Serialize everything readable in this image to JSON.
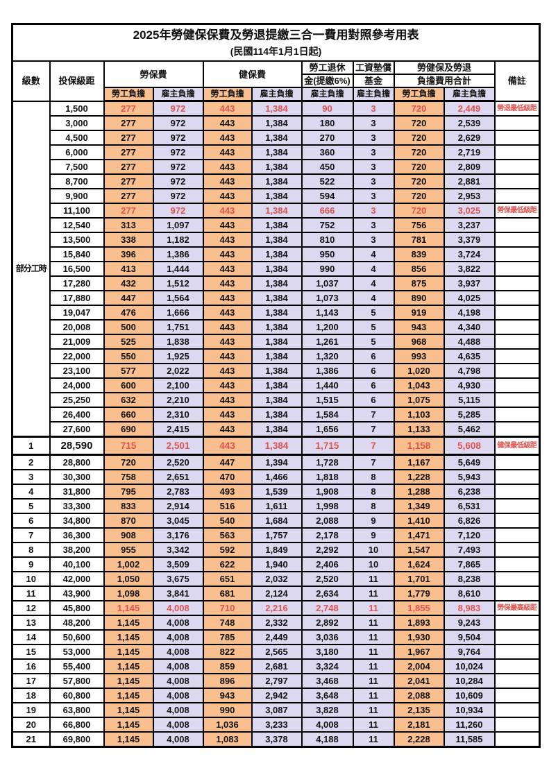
{
  "title": "2025年勞健保保費及勞退提繳三合一費用對照參考用表",
  "subtitle": "(民國114年1月1日起)",
  "colors": {
    "employee_column_bg": "#FABF8F",
    "employer_column_bg": "#DBD8EF",
    "highlight_red_text": "#E0524E",
    "grid_border": "#000000"
  },
  "header": {
    "level": "級數",
    "bracket": "投保級距",
    "labor": "勞保費",
    "health": "健保費",
    "pension_1": "勞工退休",
    "pension_2": "金(提繳6%)",
    "fund_1": "工資墊償",
    "fund_2": "基金",
    "total_1": "勞健保及勞退",
    "total_2": "負擔費用合計",
    "remark": "備註",
    "employee_label": "勞工負擔",
    "employer_label": "雇主負擔"
  },
  "table": {
    "level_group_label": "部分工時",
    "level_group_span": 23,
    "rows": [
      {
        "level": "",
        "bracket": "1,500",
        "labor_emp": "277",
        "labor_er": "972",
        "health_emp": "443",
        "health_er": "1,384",
        "pension": "90",
        "wage_fund": "3",
        "total_emp": "720",
        "total_er": "2,449",
        "remark": "勞退最低級距",
        "red": true
      },
      {
        "level": "",
        "bracket": "3,000",
        "labor_emp": "277",
        "labor_er": "972",
        "health_emp": "443",
        "health_er": "1,384",
        "pension": "180",
        "wage_fund": "3",
        "total_emp": "720",
        "total_er": "2,539",
        "remark": ""
      },
      {
        "level": "",
        "bracket": "4,500",
        "labor_emp": "277",
        "labor_er": "972",
        "health_emp": "443",
        "health_er": "1,384",
        "pension": "270",
        "wage_fund": "3",
        "total_emp": "720",
        "total_er": "2,629",
        "remark": ""
      },
      {
        "level": "",
        "bracket": "6,000",
        "labor_emp": "277",
        "labor_er": "972",
        "health_emp": "443",
        "health_er": "1,384",
        "pension": "360",
        "wage_fund": "3",
        "total_emp": "720",
        "total_er": "2,719",
        "remark": ""
      },
      {
        "level": "",
        "bracket": "7,500",
        "labor_emp": "277",
        "labor_er": "972",
        "health_emp": "443",
        "health_er": "1,384",
        "pension": "450",
        "wage_fund": "3",
        "total_emp": "720",
        "total_er": "2,809",
        "remark": ""
      },
      {
        "level": "",
        "bracket": "8,700",
        "labor_emp": "277",
        "labor_er": "972",
        "health_emp": "443",
        "health_er": "1,384",
        "pension": "522",
        "wage_fund": "3",
        "total_emp": "720",
        "total_er": "2,881",
        "remark": ""
      },
      {
        "level": "",
        "bracket": "9,900",
        "labor_emp": "277",
        "labor_er": "972",
        "health_emp": "443",
        "health_er": "1,384",
        "pension": "594",
        "wage_fund": "3",
        "total_emp": "720",
        "total_er": "2,953",
        "remark": ""
      },
      {
        "level": "",
        "bracket": "11,100",
        "labor_emp": "277",
        "labor_er": "972",
        "health_emp": "443",
        "health_er": "1,384",
        "pension": "666",
        "wage_fund": "3",
        "total_emp": "720",
        "total_er": "3,025",
        "remark": "勞保最低級距",
        "red": true
      },
      {
        "level": "",
        "bracket": "12,540",
        "labor_emp": "313",
        "labor_er": "1,097",
        "health_emp": "443",
        "health_er": "1,384",
        "pension": "752",
        "wage_fund": "3",
        "total_emp": "756",
        "total_er": "3,237",
        "remark": ""
      },
      {
        "level": "",
        "bracket": "13,500",
        "labor_emp": "338",
        "labor_er": "1,182",
        "health_emp": "443",
        "health_er": "1,384",
        "pension": "810",
        "wage_fund": "3",
        "total_emp": "781",
        "total_er": "3,379",
        "remark": ""
      },
      {
        "level": "",
        "bracket": "15,840",
        "labor_emp": "396",
        "labor_er": "1,386",
        "health_emp": "443",
        "health_er": "1,384",
        "pension": "950",
        "wage_fund": "4",
        "total_emp": "839",
        "total_er": "3,724",
        "remark": ""
      },
      {
        "level": "",
        "bracket": "16,500",
        "labor_emp": "413",
        "labor_er": "1,444",
        "health_emp": "443",
        "health_er": "1,384",
        "pension": "990",
        "wage_fund": "4",
        "total_emp": "856",
        "total_er": "3,822",
        "remark": ""
      },
      {
        "level": "",
        "bracket": "17,280",
        "labor_emp": "432",
        "labor_er": "1,512",
        "health_emp": "443",
        "health_er": "1,384",
        "pension": "1,037",
        "wage_fund": "4",
        "total_emp": "875",
        "total_er": "3,937",
        "remark": ""
      },
      {
        "level": "",
        "bracket": "17,880",
        "labor_emp": "447",
        "labor_er": "1,564",
        "health_emp": "443",
        "health_er": "1,384",
        "pension": "1,073",
        "wage_fund": "4",
        "total_emp": "890",
        "total_er": "4,025",
        "remark": ""
      },
      {
        "level": "",
        "bracket": "19,047",
        "labor_emp": "476",
        "labor_er": "1,666",
        "health_emp": "443",
        "health_er": "1,384",
        "pension": "1,143",
        "wage_fund": "5",
        "total_emp": "919",
        "total_er": "4,198",
        "remark": ""
      },
      {
        "level": "",
        "bracket": "20,008",
        "labor_emp": "500",
        "labor_er": "1,751",
        "health_emp": "443",
        "health_er": "1,384",
        "pension": "1,200",
        "wage_fund": "5",
        "total_emp": "943",
        "total_er": "4,340",
        "remark": ""
      },
      {
        "level": "",
        "bracket": "21,009",
        "labor_emp": "525",
        "labor_er": "1,838",
        "health_emp": "443",
        "health_er": "1,384",
        "pension": "1,261",
        "wage_fund": "5",
        "total_emp": "968",
        "total_er": "4,488",
        "remark": ""
      },
      {
        "level": "",
        "bracket": "22,000",
        "labor_emp": "550",
        "labor_er": "1,925",
        "health_emp": "443",
        "health_er": "1,384",
        "pension": "1,320",
        "wage_fund": "6",
        "total_emp": "993",
        "total_er": "4,635",
        "remark": ""
      },
      {
        "level": "",
        "bracket": "23,100",
        "labor_emp": "577",
        "labor_er": "2,022",
        "health_emp": "443",
        "health_er": "1,384",
        "pension": "1,386",
        "wage_fund": "6",
        "total_emp": "1,020",
        "total_er": "4,798",
        "remark": ""
      },
      {
        "level": "",
        "bracket": "24,000",
        "labor_emp": "600",
        "labor_er": "2,100",
        "health_emp": "443",
        "health_er": "1,384",
        "pension": "1,440",
        "wage_fund": "6",
        "total_emp": "1,043",
        "total_er": "4,930",
        "remark": ""
      },
      {
        "level": "",
        "bracket": "25,250",
        "labor_emp": "632",
        "labor_er": "2,210",
        "health_emp": "443",
        "health_er": "1,384",
        "pension": "1,515",
        "wage_fund": "6",
        "total_emp": "1,075",
        "total_er": "5,115",
        "remark": ""
      },
      {
        "level": "",
        "bracket": "26,400",
        "labor_emp": "660",
        "labor_er": "2,310",
        "health_emp": "443",
        "health_er": "1,384",
        "pension": "1,584",
        "wage_fund": "7",
        "total_emp": "1,103",
        "total_er": "5,285",
        "remark": ""
      },
      {
        "level": "",
        "bracket": "27,600",
        "labor_emp": "690",
        "labor_er": "2,415",
        "health_emp": "443",
        "health_er": "1,384",
        "pension": "1,656",
        "wage_fund": "7",
        "total_emp": "1,133",
        "total_er": "5,462",
        "remark": ""
      },
      {
        "level": "1",
        "bracket": "28,590",
        "labor_emp": "715",
        "labor_er": "2,501",
        "health_emp": "443",
        "health_er": "1,384",
        "pension": "1,715",
        "wage_fund": "7",
        "total_emp": "1,158",
        "total_er": "5,608",
        "remark": "健保最低級距",
        "red": true,
        "emphasis": true
      },
      {
        "level": "2",
        "bracket": "28,800",
        "labor_emp": "720",
        "labor_er": "2,520",
        "health_emp": "447",
        "health_er": "1,394",
        "pension": "1,728",
        "wage_fund": "7",
        "total_emp": "1,167",
        "total_er": "5,649",
        "remark": ""
      },
      {
        "level": "3",
        "bracket": "30,300",
        "labor_emp": "758",
        "labor_er": "2,651",
        "health_emp": "470",
        "health_er": "1,466",
        "pension": "1,818",
        "wage_fund": "8",
        "total_emp": "1,228",
        "total_er": "5,943",
        "remark": ""
      },
      {
        "level": "4",
        "bracket": "31,800",
        "labor_emp": "795",
        "labor_er": "2,783",
        "health_emp": "493",
        "health_er": "1,539",
        "pension": "1,908",
        "wage_fund": "8",
        "total_emp": "1,288",
        "total_er": "6,238",
        "remark": ""
      },
      {
        "level": "5",
        "bracket": "33,300",
        "labor_emp": "833",
        "labor_er": "2,914",
        "health_emp": "516",
        "health_er": "1,611",
        "pension": "1,998",
        "wage_fund": "8",
        "total_emp": "1,349",
        "total_er": "6,531",
        "remark": ""
      },
      {
        "level": "6",
        "bracket": "34,800",
        "labor_emp": "870",
        "labor_er": "3,045",
        "health_emp": "540",
        "health_er": "1,684",
        "pension": "2,088",
        "wage_fund": "9",
        "total_emp": "1,410",
        "total_er": "6,826",
        "remark": ""
      },
      {
        "level": "7",
        "bracket": "36,300",
        "labor_emp": "908",
        "labor_er": "3,176",
        "health_emp": "563",
        "health_er": "1,757",
        "pension": "2,178",
        "wage_fund": "9",
        "total_emp": "1,471",
        "total_er": "7,120",
        "remark": ""
      },
      {
        "level": "8",
        "bracket": "38,200",
        "labor_emp": "955",
        "labor_er": "3,342",
        "health_emp": "592",
        "health_er": "1,849",
        "pension": "2,292",
        "wage_fund": "10",
        "total_emp": "1,547",
        "total_er": "7,493",
        "remark": ""
      },
      {
        "level": "9",
        "bracket": "40,100",
        "labor_emp": "1,002",
        "labor_er": "3,509",
        "health_emp": "622",
        "health_er": "1,940",
        "pension": "2,406",
        "wage_fund": "10",
        "total_emp": "1,624",
        "total_er": "7,865",
        "remark": ""
      },
      {
        "level": "10",
        "bracket": "42,000",
        "labor_emp": "1,050",
        "labor_er": "3,675",
        "health_emp": "651",
        "health_er": "2,032",
        "pension": "2,520",
        "wage_fund": "11",
        "total_emp": "1,701",
        "total_er": "8,238",
        "remark": ""
      },
      {
        "level": "11",
        "bracket": "43,900",
        "labor_emp": "1,098",
        "labor_er": "3,841",
        "health_emp": "681",
        "health_er": "2,124",
        "pension": "2,634",
        "wage_fund": "11",
        "total_emp": "1,779",
        "total_er": "8,610",
        "remark": ""
      },
      {
        "level": "12",
        "bracket": "45,800",
        "labor_emp": "1,145",
        "labor_er": "4,008",
        "health_emp": "710",
        "health_er": "2,216",
        "pension": "2,748",
        "wage_fund": "11",
        "total_emp": "1,855",
        "total_er": "8,983",
        "remark": "勞保最高級距",
        "red": true
      },
      {
        "level": "13",
        "bracket": "48,200",
        "labor_emp": "1,145",
        "labor_er": "4,008",
        "health_emp": "748",
        "health_er": "2,332",
        "pension": "2,892",
        "wage_fund": "11",
        "total_emp": "1,893",
        "total_er": "9,243",
        "remark": ""
      },
      {
        "level": "14",
        "bracket": "50,600",
        "labor_emp": "1,145",
        "labor_er": "4,008",
        "health_emp": "785",
        "health_er": "2,449",
        "pension": "3,036",
        "wage_fund": "11",
        "total_emp": "1,930",
        "total_er": "9,504",
        "remark": ""
      },
      {
        "level": "15",
        "bracket": "53,000",
        "labor_emp": "1,145",
        "labor_er": "4,008",
        "health_emp": "822",
        "health_er": "2,565",
        "pension": "3,180",
        "wage_fund": "11",
        "total_emp": "1,967",
        "total_er": "9,764",
        "remark": ""
      },
      {
        "level": "16",
        "bracket": "55,400",
        "labor_emp": "1,145",
        "labor_er": "4,008",
        "health_emp": "859",
        "health_er": "2,681",
        "pension": "3,324",
        "wage_fund": "11",
        "total_emp": "2,004",
        "total_er": "10,024",
        "remark": ""
      },
      {
        "level": "17",
        "bracket": "57,800",
        "labor_emp": "1,145",
        "labor_er": "4,008",
        "health_emp": "896",
        "health_er": "2,797",
        "pension": "3,468",
        "wage_fund": "11",
        "total_emp": "2,041",
        "total_er": "10,284",
        "remark": ""
      },
      {
        "level": "18",
        "bracket": "60,800",
        "labor_emp": "1,145",
        "labor_er": "4,008",
        "health_emp": "943",
        "health_er": "2,942",
        "pension": "3,648",
        "wage_fund": "11",
        "total_emp": "2,088",
        "total_er": "10,609",
        "remark": ""
      },
      {
        "level": "19",
        "bracket": "63,800",
        "labor_emp": "1,145",
        "labor_er": "4,008",
        "health_emp": "990",
        "health_er": "3,087",
        "pension": "3,828",
        "wage_fund": "11",
        "total_emp": "2,135",
        "total_er": "10,934",
        "remark": ""
      },
      {
        "level": "20",
        "bracket": "66,800",
        "labor_emp": "1,145",
        "labor_er": "4,008",
        "health_emp": "1,036",
        "health_er": "3,233",
        "pension": "4,008",
        "wage_fund": "11",
        "total_emp": "2,181",
        "total_er": "11,260",
        "remark": ""
      },
      {
        "level": "21",
        "bracket": "69,800",
        "labor_emp": "1,145",
        "labor_er": "4,008",
        "health_emp": "1,083",
        "health_er": "3,378",
        "pension": "4,188",
        "wage_fund": "11",
        "total_emp": "2,228",
        "total_er": "11,585",
        "remark": ""
      }
    ]
  }
}
